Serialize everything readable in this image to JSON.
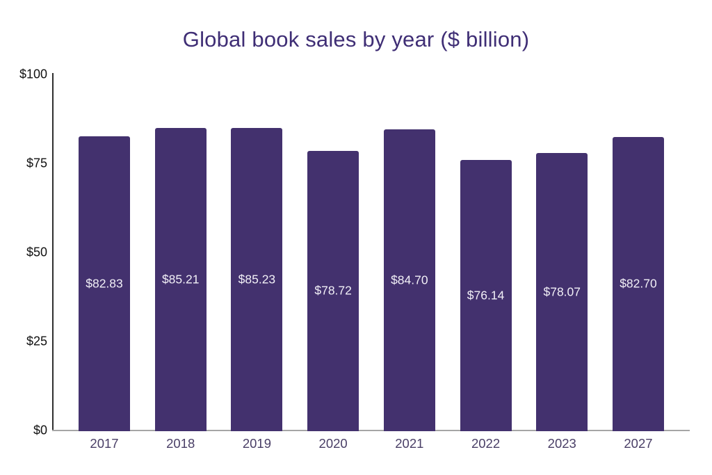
{
  "chart_data": {
    "type": "bar",
    "title": "Global book sales by year ($ billion)",
    "categories": [
      "2017",
      "2018",
      "2019",
      "2020",
      "2021",
      "2022",
      "2023",
      "2027"
    ],
    "values": [
      82.83,
      85.21,
      85.23,
      78.72,
      84.7,
      76.14,
      78.07,
      82.7
    ],
    "bar_labels": [
      "$82.83",
      "$85.21",
      "$85.23",
      "$78.72",
      "$84.70",
      "$76.14",
      "$78.07",
      "$82.70"
    ],
    "xlabel": "",
    "ylabel": "",
    "ylim": [
      0,
      100
    ],
    "y_ticks": [
      {
        "value": 100,
        "label": "$100"
      },
      {
        "value": 75,
        "label": "$75"
      },
      {
        "value": 50,
        "label": "$50"
      },
      {
        "value": 25,
        "label": "$25"
      },
      {
        "value": 0,
        "label": "$0"
      }
    ],
    "grid": false,
    "legend": "none",
    "colors": {
      "bar": "#43316e",
      "bar_label": "#f2f0f7",
      "title": "#3f2e75",
      "x_tick": "#493e66",
      "y_tick": "#111111",
      "y_axis_line": "#2e2e2e",
      "x_axis_line": "#a6a6a6",
      "background": "#ffffff"
    }
  }
}
